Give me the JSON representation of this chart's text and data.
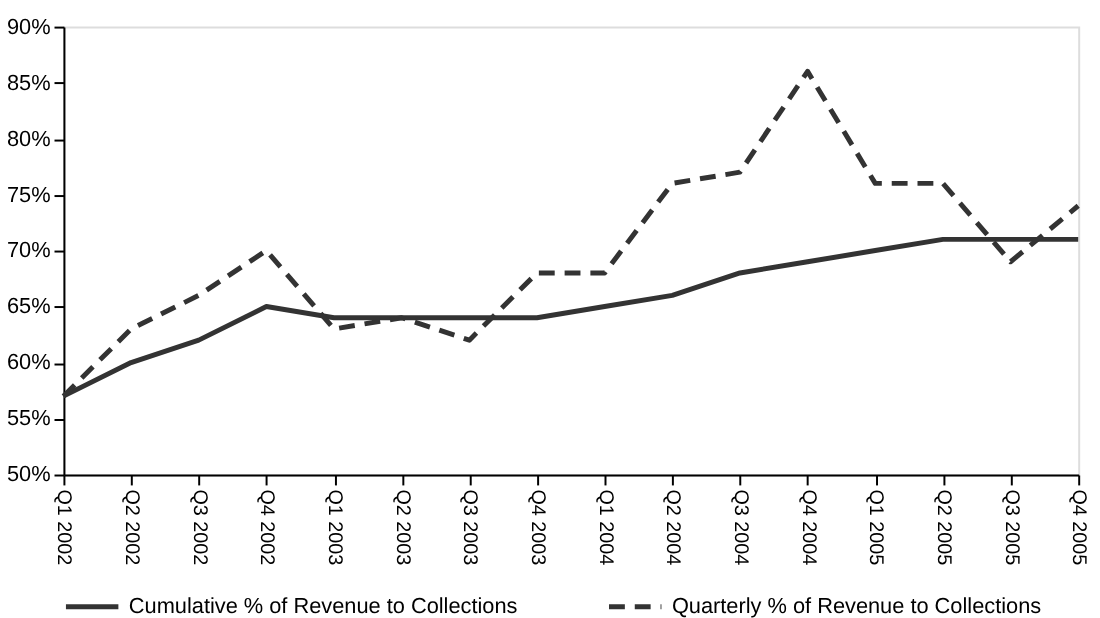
{
  "chart_data": {
    "type": "line",
    "categories": [
      "Q1 2002",
      "Q2 2002",
      "Q3 2002",
      "Q4 2002",
      "Q1 2003",
      "Q2 2003",
      "Q3 2003",
      "Q4 2003",
      "Q1 2004",
      "Q2 2004",
      "Q3 2004",
      "Q4 2004",
      "Q1 2005",
      "Q2 2005",
      "Q3 2005",
      "Q4 2005"
    ],
    "series": [
      {
        "name": "Cumulative % of Revenue to Collections",
        "color": "#333333",
        "line_style": "solid",
        "values": [
          57,
          60,
          62,
          65,
          64,
          64,
          64,
          64,
          65,
          66,
          68,
          69,
          70,
          71,
          71,
          71
        ]
      },
      {
        "name": "Quarterly % of Revenue to Collections",
        "color": "#333333",
        "line_style": "dashed",
        "values": [
          57,
          63,
          66,
          70,
          63,
          64,
          62,
          68,
          68,
          76,
          77,
          86,
          76,
          76,
          69,
          74
        ]
      }
    ],
    "ylim": [
      50,
      90
    ],
    "yticks": [
      {
        "value": 50,
        "label": "50%"
      },
      {
        "value": 55,
        "label": "55%"
      },
      {
        "value": 60,
        "label": "60%"
      },
      {
        "value": 65,
        "label": "65%"
      },
      {
        "value": 70,
        "label": "70%"
      },
      {
        "value": 75,
        "label": "75%"
      },
      {
        "value": 80,
        "label": "80%"
      },
      {
        "value": 85,
        "label": "85%"
      },
      {
        "value": 90,
        "label": "90%"
      }
    ],
    "grid": false,
    "legend": "bottom",
    "marker": "none"
  }
}
